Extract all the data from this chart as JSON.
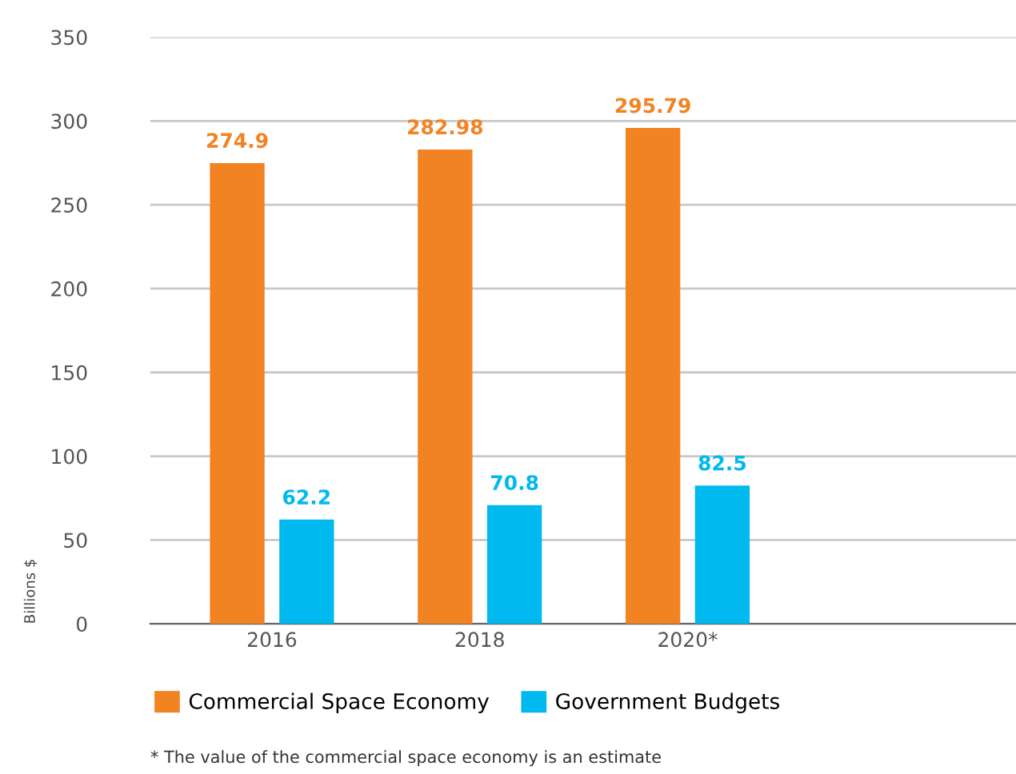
{
  "chart_data": {
    "type": "bar",
    "ylabel": "Billions $",
    "categories": [
      "2016",
      "2018",
      "2020*"
    ],
    "series": [
      {
        "name": "Commercial Space Economy",
        "color": "#f28322",
        "values": [
          274.9,
          282.98,
          295.79
        ]
      },
      {
        "name": "Government Budgets",
        "color": "#00b9ee",
        "values": [
          62.2,
          70.8,
          82.5
        ]
      }
    ],
    "ylim": [
      0,
      350
    ],
    "yticks": [
      0,
      50,
      100,
      150,
      200,
      250,
      300,
      350
    ],
    "grid": "y",
    "legend": "bottom left",
    "data_labels": true,
    "annotations": [
      "* The value of the commercial space economy is an estimate"
    ]
  }
}
